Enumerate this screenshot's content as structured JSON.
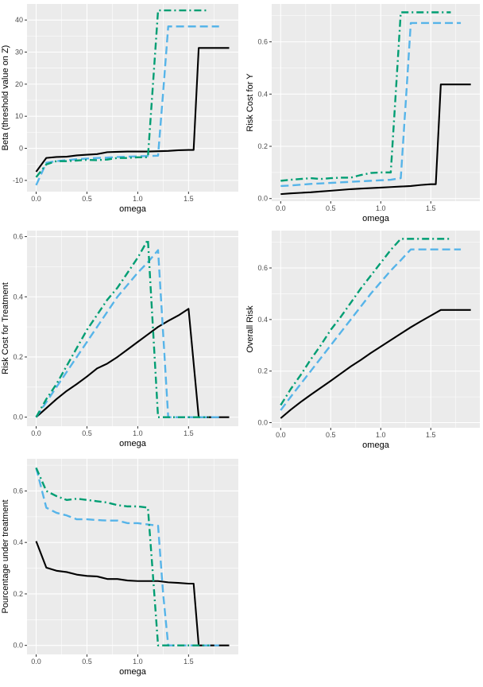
{
  "chart_data": [
    {
      "type": "line",
      "xlabel": "omega",
      "ylabel": "Beta (threshold value on Z)",
      "xlim": [
        -0.09,
        1.99
      ],
      "ylim": [
        -13.5,
        45
      ],
      "xticks": [
        "0.0",
        "0.5",
        "1.0",
        "1.5"
      ],
      "yticks": [
        "-10",
        "0",
        "10",
        "20",
        "30",
        "40"
      ],
      "grid": true,
      "series": [
        {
          "color": "#000000",
          "style": "solid",
          "x": [
            0,
            0.1,
            0.2,
            0.3,
            0.4,
            0.5,
            0.6,
            0.7,
            0.8,
            0.9,
            1.0,
            1.1,
            1.2,
            1.3,
            1.4,
            1.5,
            1.55,
            1.6,
            1.7,
            1.8,
            1.9
          ],
          "y": [
            -7.3,
            -3.0,
            -2.7,
            -2.6,
            -2.2,
            -2.0,
            -1.8,
            -1.2,
            -1.1,
            -1.0,
            -1.0,
            -1.0,
            -0.9,
            -0.8,
            -0.6,
            -0.5,
            -0.5,
            31.3,
            31.3,
            31.3,
            31.3
          ]
        },
        {
          "color": "#56B4E9",
          "style": "dashed",
          "x": [
            0,
            0.1,
            0.2,
            0.3,
            0.4,
            0.5,
            0.6,
            0.7,
            0.8,
            0.9,
            1.0,
            1.1,
            1.2,
            1.25,
            1.3,
            1.4,
            1.5,
            1.6,
            1.7,
            1.8
          ],
          "y": [
            -11.5,
            -4.5,
            -4.0,
            -3.7,
            -3.4,
            -3.2,
            -3.0,
            -2.9,
            -2.7,
            -2.6,
            -2.5,
            -2.4,
            -2.3,
            17.5,
            38.0,
            38.0,
            38.0,
            38.0,
            38.0,
            38.0
          ]
        },
        {
          "color": "#009E73",
          "style": "dotdash",
          "x": [
            0,
            0.1,
            0.2,
            0.3,
            0.4,
            0.5,
            0.6,
            0.7,
            0.8,
            0.9,
            1.0,
            1.1,
            1.15,
            1.2,
            1.3,
            1.4,
            1.5,
            1.6,
            1.7
          ],
          "y": [
            -9.0,
            -5.0,
            -4.0,
            -4.0,
            -3.8,
            -3.6,
            -3.7,
            -3.5,
            -3.0,
            -3.0,
            -2.8,
            -2.8,
            20.0,
            43.0,
            43.0,
            43.0,
            43.0,
            43.0,
            43.0
          ]
        }
      ]
    },
    {
      "type": "line",
      "xlabel": "omega",
      "ylabel": "Risk Cost for Y",
      "xlim": [
        -0.09,
        1.99
      ],
      "ylim": [
        -0.01,
        0.745
      ],
      "xticks": [
        "0.0",
        "0.5",
        "1.0",
        "1.5"
      ],
      "yticks": [
        "0.0",
        "0.2",
        "0.4",
        "0.6"
      ],
      "grid": true,
      "series": [
        {
          "color": "#000000",
          "style": "solid",
          "x": [
            0,
            0.1,
            0.2,
            0.3,
            0.4,
            0.5,
            0.6,
            0.7,
            0.8,
            0.9,
            1.0,
            1.1,
            1.2,
            1.3,
            1.4,
            1.5,
            1.55,
            1.6,
            1.7,
            1.8,
            1.9
          ],
          "y": [
            0.017,
            0.02,
            0.022,
            0.024,
            0.027,
            0.03,
            0.033,
            0.036,
            0.038,
            0.04,
            0.042,
            0.044,
            0.046,
            0.048,
            0.052,
            0.055,
            0.055,
            0.437,
            0.437,
            0.437,
            0.437
          ]
        },
        {
          "color": "#56B4E9",
          "style": "dashed",
          "x": [
            0,
            0.1,
            0.2,
            0.3,
            0.4,
            0.5,
            0.6,
            0.7,
            0.8,
            0.9,
            1.0,
            1.1,
            1.2,
            1.25,
            1.3,
            1.4,
            1.5,
            1.6,
            1.7,
            1.8
          ],
          "y": [
            0.048,
            0.05,
            0.053,
            0.056,
            0.058,
            0.06,
            0.062,
            0.064,
            0.066,
            0.068,
            0.07,
            0.072,
            0.078,
            0.37,
            0.672,
            0.672,
            0.672,
            0.672,
            0.672,
            0.672
          ]
        },
        {
          "color": "#009E73",
          "style": "dotdash",
          "x": [
            0,
            0.1,
            0.2,
            0.3,
            0.4,
            0.5,
            0.6,
            0.7,
            0.8,
            0.9,
            1.0,
            1.1,
            1.15,
            1.2,
            1.3,
            1.4,
            1.5,
            1.6,
            1.7
          ],
          "y": [
            0.068,
            0.072,
            0.075,
            0.078,
            0.075,
            0.078,
            0.08,
            0.08,
            0.09,
            0.098,
            0.1,
            0.1,
            0.405,
            0.713,
            0.713,
            0.713,
            0.713,
            0.713,
            0.713
          ]
        }
      ]
    },
    {
      "type": "line",
      "xlabel": "omega",
      "ylabel": "Risk Cost for Treatment",
      "xlim": [
        -0.09,
        1.99
      ],
      "ylim": [
        -0.03,
        0.62
      ],
      "xticks": [
        "0.0",
        "0.5",
        "1.0",
        "1.5"
      ],
      "yticks": [
        "0.0",
        "0.2",
        "0.4",
        "0.6"
      ],
      "grid": true,
      "series": [
        {
          "color": "#000000",
          "style": "solid",
          "x": [
            0,
            0.1,
            0.2,
            0.3,
            0.4,
            0.5,
            0.6,
            0.7,
            0.8,
            0.9,
            1.0,
            1.1,
            1.2,
            1.3,
            1.4,
            1.5,
            1.6,
            1.7,
            1.8,
            1.9
          ],
          "y": [
            0.0,
            0.03,
            0.06,
            0.087,
            0.11,
            0.135,
            0.162,
            0.178,
            0.2,
            0.225,
            0.25,
            0.275,
            0.3,
            0.32,
            0.338,
            0.36,
            0.0,
            0.0,
            0.0,
            0.0
          ]
        },
        {
          "color": "#56B4E9",
          "style": "dashed",
          "x": [
            0,
            0.1,
            0.2,
            0.3,
            0.4,
            0.5,
            0.6,
            0.7,
            0.8,
            0.9,
            1.0,
            1.1,
            1.2,
            1.3,
            1.4,
            1.5,
            1.6,
            1.7,
            1.8
          ],
          "y": [
            0.0,
            0.05,
            0.1,
            0.15,
            0.2,
            0.25,
            0.3,
            0.35,
            0.4,
            0.44,
            0.48,
            0.515,
            0.555,
            0.0,
            0.0,
            0.0,
            0.0,
            0.0,
            0.0
          ]
        },
        {
          "color": "#009E73",
          "style": "dotdash",
          "x": [
            0,
            0.1,
            0.2,
            0.3,
            0.4,
            0.5,
            0.6,
            0.7,
            0.8,
            0.9,
            1.0,
            1.1,
            1.2,
            1.3,
            1.4,
            1.5,
            1.6,
            1.7
          ],
          "y": [
            0.0,
            0.06,
            0.11,
            0.17,
            0.23,
            0.29,
            0.34,
            0.39,
            0.43,
            0.48,
            0.53,
            0.59,
            0.0,
            0.0,
            0.0,
            0.0,
            0.0,
            0.0
          ]
        }
      ]
    },
    {
      "type": "line",
      "xlabel": "omega",
      "ylabel": "Overall Risk",
      "xlim": [
        -0.09,
        1.99
      ],
      "ylim": [
        -0.02,
        0.745
      ],
      "xticks": [
        "0.0",
        "0.5",
        "1.0",
        "1.5"
      ],
      "yticks": [
        "0.0",
        "0.2",
        "0.4",
        "0.6"
      ],
      "grid": true,
      "series": [
        {
          "color": "#000000",
          "style": "solid",
          "x": [
            0,
            0.1,
            0.2,
            0.3,
            0.4,
            0.5,
            0.6,
            0.7,
            0.8,
            0.9,
            1.0,
            1.1,
            1.2,
            1.3,
            1.4,
            1.5,
            1.6,
            1.7,
            1.8,
            1.9
          ],
          "y": [
            0.017,
            0.05,
            0.08,
            0.108,
            0.135,
            0.162,
            0.19,
            0.218,
            0.243,
            0.27,
            0.295,
            0.32,
            0.345,
            0.37,
            0.393,
            0.415,
            0.437,
            0.437,
            0.437,
            0.437
          ]
        },
        {
          "color": "#56B4E9",
          "style": "dashed",
          "x": [
            0,
            0.1,
            0.2,
            0.3,
            0.4,
            0.5,
            0.6,
            0.7,
            0.8,
            0.9,
            1.0,
            1.1,
            1.2,
            1.3,
            1.4,
            1.5,
            1.6,
            1.7,
            1.8
          ],
          "y": [
            0.048,
            0.1,
            0.15,
            0.2,
            0.25,
            0.3,
            0.35,
            0.4,
            0.45,
            0.5,
            0.545,
            0.59,
            0.63,
            0.672,
            0.672,
            0.672,
            0.672,
            0.672,
            0.672
          ]
        },
        {
          "color": "#009E73",
          "style": "dotdash",
          "x": [
            0,
            0.1,
            0.2,
            0.3,
            0.4,
            0.5,
            0.6,
            0.7,
            0.8,
            0.9,
            1.0,
            1.1,
            1.2,
            1.3,
            1.4,
            1.5,
            1.6,
            1.7
          ],
          "y": [
            0.068,
            0.13,
            0.185,
            0.245,
            0.3,
            0.36,
            0.41,
            0.465,
            0.52,
            0.57,
            0.62,
            0.67,
            0.713,
            0.713,
            0.713,
            0.713,
            0.713,
            0.713
          ]
        }
      ]
    },
    {
      "type": "line",
      "xlabel": "omega",
      "ylabel": "Pourcentage under treatment",
      "xlim": [
        -0.09,
        1.99
      ],
      "ylim": [
        -0.035,
        0.725
      ],
      "xticks": [
        "0.0",
        "0.5",
        "1.0",
        "1.5"
      ],
      "yticks": [
        "0.0",
        "0.2",
        "0.4",
        "0.6"
      ],
      "grid": true,
      "series": [
        {
          "color": "#000000",
          "style": "solid",
          "x": [
            0,
            0.1,
            0.2,
            0.3,
            0.4,
            0.5,
            0.6,
            0.7,
            0.8,
            0.9,
            1.0,
            1.1,
            1.2,
            1.3,
            1.4,
            1.5,
            1.55,
            1.6,
            1.7,
            1.8,
            1.9
          ],
          "y": [
            0.405,
            0.302,
            0.29,
            0.285,
            0.275,
            0.27,
            0.268,
            0.258,
            0.258,
            0.252,
            0.25,
            0.25,
            0.25,
            0.245,
            0.243,
            0.24,
            0.24,
            0.0,
            0.0,
            0.0,
            0.0
          ]
        },
        {
          "color": "#56B4E9",
          "style": "dashed",
          "x": [
            0,
            0.1,
            0.2,
            0.3,
            0.4,
            0.5,
            0.6,
            0.7,
            0.8,
            0.9,
            1.0,
            1.1,
            1.2,
            1.25,
            1.3,
            1.4,
            1.5,
            1.6,
            1.7,
            1.8
          ],
          "y": [
            0.69,
            0.535,
            0.515,
            0.505,
            0.49,
            0.49,
            0.487,
            0.485,
            0.485,
            0.475,
            0.475,
            0.47,
            0.465,
            0.2,
            0.0,
            0.0,
            0.0,
            0.0,
            0.0,
            0.0
          ]
        },
        {
          "color": "#009E73",
          "style": "dotdash",
          "x": [
            0,
            0.1,
            0.2,
            0.3,
            0.4,
            0.5,
            0.6,
            0.7,
            0.8,
            0.9,
            1.0,
            1.1,
            1.15,
            1.2,
            1.3,
            1.4,
            1.5,
            1.6,
            1.7
          ],
          "y": [
            0.69,
            0.6,
            0.58,
            0.565,
            0.57,
            0.565,
            0.56,
            0.555,
            0.545,
            0.54,
            0.54,
            0.535,
            0.27,
            0.0,
            0.0,
            0.0,
            0.0,
            0.0,
            0.0
          ]
        }
      ]
    }
  ]
}
